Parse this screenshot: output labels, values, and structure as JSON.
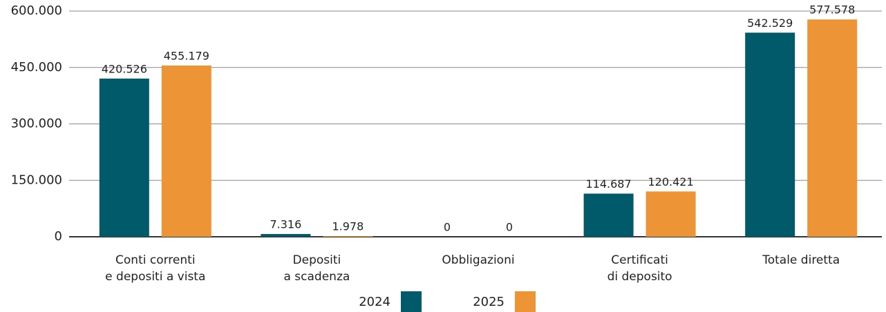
{
  "chart_data": {
    "type": "bar",
    "categories": [
      "Conti correnti\ne depositi a vista",
      "Depositi\na scadenza",
      "Obbligazioni",
      "Certificati\ndi deposito",
      "Totale diretta"
    ],
    "series": [
      {
        "name": "2024",
        "color": "#005a69",
        "values": [
          420526,
          7316,
          0,
          114687,
          542529
        ],
        "value_labels": [
          "420.526",
          "7.316",
          "0",
          "114.687",
          "542.529"
        ]
      },
      {
        "name": "2025",
        "color": "#ec9436",
        "values": [
          455179,
          1978,
          0,
          120421,
          577578
        ],
        "value_labels": [
          "455.179",
          "1.978",
          "0",
          "120.421",
          "577.578"
        ]
      }
    ],
    "ylim": [
      0,
      600000
    ],
    "yticks": [
      {
        "value": 0,
        "label": "0"
      },
      {
        "value": 150000,
        "label": "150.000"
      },
      {
        "value": 300000,
        "label": "300.000"
      },
      {
        "value": 450000,
        "label": "450.000"
      },
      {
        "value": 600000,
        "label": "600.000"
      }
    ],
    "grid": true
  }
}
